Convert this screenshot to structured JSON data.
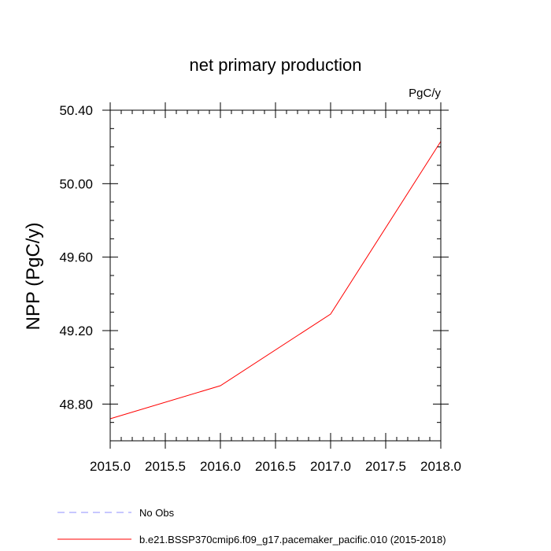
{
  "chart_data": {
    "type": "line",
    "title": "net primary production",
    "units_label": "PgC/y",
    "ylabel": "NPP  (PgC/y)",
    "xlabel": "",
    "xlim": [
      2015.0,
      2018.0
    ],
    "ylim": [
      48.6,
      50.4
    ],
    "xticks": [
      2015.0,
      2015.5,
      2016.0,
      2016.5,
      2017.0,
      2017.5,
      2018.0
    ],
    "xtick_labels": [
      "2015.0",
      "2015.5",
      "2016.0",
      "2016.5",
      "2017.0",
      "2017.5",
      "2018.0"
    ],
    "yticks": [
      48.8,
      49.2,
      49.6,
      50.0,
      50.4
    ],
    "ytick_labels": [
      "48.80",
      "49.20",
      "49.60",
      "50.00",
      "50.40"
    ],
    "series": [
      {
        "name": "b.e21.BSSP370cmip6.f09_g17.pacemaker_pacific.010 (2015-2018)",
        "color": "#ff0000",
        "dash": "solid",
        "x": [
          2015,
          2016,
          2017,
          2018
        ],
        "values": [
          48.72,
          48.9,
          49.29,
          50.23
        ]
      }
    ],
    "legend": [
      {
        "label": "No Obs",
        "color": "#8f8fff",
        "dash": "dashed"
      },
      {
        "label": "b.e21.BSSP370cmip6.f09_g17.pacemaker_pacific.010 (2015-2018)",
        "color": "#ff0000",
        "dash": "solid"
      }
    ],
    "legend_position": "bottom-left",
    "grid": false
  }
}
